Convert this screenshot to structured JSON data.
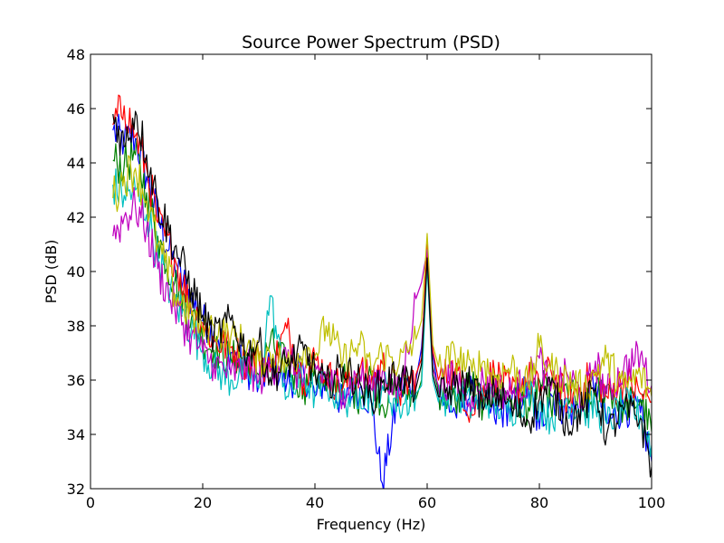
{
  "chart_data": {
    "type": "line",
    "title": "Source Power Spectrum (PSD)",
    "xlabel": "Frequency (Hz)",
    "ylabel": "PSD (dB)",
    "xlim": [
      0,
      100
    ],
    "ylim": [
      32,
      48
    ],
    "xticks": [
      0,
      20,
      40,
      60,
      80,
      100
    ],
    "yticks": [
      32,
      34,
      36,
      38,
      40,
      42,
      44,
      46,
      48
    ],
    "xtick_labels": [
      "0",
      "20",
      "40",
      "60",
      "80",
      "100"
    ],
    "ytick_labels": [
      "32",
      "34",
      "36",
      "38",
      "40",
      "42",
      "44",
      "46",
      "48"
    ],
    "grid": false,
    "legend": "none",
    "series_colors": [
      "#0000ff",
      "#008000",
      "#ff0000",
      "#00bfbf",
      "#bf00bf",
      "#bfbf00",
      "#000000"
    ],
    "series": [
      {
        "color": "#0000ff",
        "x": [
          4,
          6,
          8,
          10,
          12,
          15,
          18,
          20,
          22,
          25,
          28,
          30,
          32,
          35,
          38,
          40,
          42,
          45,
          48,
          50,
          52,
          55,
          58,
          59,
          60,
          61,
          62,
          65,
          68,
          70,
          72,
          75,
          78,
          80,
          82,
          85,
          88,
          90,
          92,
          95,
          98,
          100
        ],
        "y": [
          45.2,
          44.8,
          44.9,
          43.5,
          42.0,
          40.2,
          39.0,
          38.2,
          37.8,
          37.0,
          36.4,
          35.8,
          36.6,
          35.9,
          36.3,
          35.4,
          36.1,
          35.1,
          35.7,
          35.2,
          32.2,
          35.6,
          36.0,
          37.2,
          40.3,
          37.0,
          35.5,
          34.8,
          35.6,
          35.2,
          34.6,
          35.1,
          35.7,
          34.2,
          35.5,
          34.8,
          35.2,
          35.9,
          34.4,
          35.0,
          34.8,
          33.0
        ]
      },
      {
        "color": "#008000",
        "x": [
          4,
          6,
          8,
          10,
          12,
          15,
          18,
          20,
          22,
          25,
          28,
          30,
          32,
          35,
          38,
          40,
          42,
          45,
          48,
          50,
          52,
          55,
          58,
          59,
          60,
          61,
          62,
          65,
          68,
          70,
          72,
          75,
          78,
          80,
          82,
          85,
          88,
          90,
          92,
          95,
          98,
          100
        ],
        "y": [
          44.1,
          43.9,
          44.3,
          42.9,
          41.3,
          39.6,
          38.3,
          37.5,
          37.1,
          36.8,
          36.9,
          36.2,
          37.4,
          36.5,
          35.7,
          36.4,
          35.6,
          36.0,
          35.4,
          36.2,
          35.1,
          35.8,
          35.3,
          36.0,
          40.9,
          36.5,
          35.6,
          35.2,
          35.9,
          35.1,
          35.7,
          35.3,
          35.0,
          36.0,
          35.1,
          35.6,
          34.9,
          35.4,
          35.8,
          35.0,
          35.3,
          34.1
        ]
      },
      {
        "color": "#ff0000",
        "x": [
          4,
          6,
          8,
          10,
          12,
          15,
          18,
          20,
          22,
          25,
          28,
          30,
          32,
          35,
          38,
          40,
          42,
          45,
          48,
          50,
          52,
          55,
          58,
          59,
          60,
          61,
          62,
          65,
          68,
          70,
          72,
          75,
          78,
          80,
          82,
          85,
          88,
          90,
          92,
          95,
          98,
          100
        ],
        "y": [
          45.4,
          46.1,
          45.0,
          43.8,
          41.8,
          40.5,
          38.6,
          38.1,
          37.4,
          37.2,
          36.6,
          36.9,
          36.3,
          37.9,
          36.0,
          36.8,
          36.2,
          35.7,
          36.4,
          35.9,
          36.6,
          35.5,
          36.2,
          36.8,
          41.0,
          37.1,
          36.0,
          36.4,
          34.7,
          35.8,
          36.3,
          35.5,
          36.1,
          35.6,
          36.4,
          35.2,
          35.9,
          36.2,
          35.4,
          36.0,
          35.5,
          35.2
        ]
      },
      {
        "color": "#00bfbf",
        "x": [
          4,
          6,
          8,
          10,
          12,
          15,
          18,
          20,
          22,
          25,
          28,
          30,
          32,
          35,
          38,
          40,
          42,
          45,
          48,
          50,
          52,
          55,
          58,
          59,
          60,
          61,
          62,
          65,
          68,
          70,
          72,
          75,
          78,
          80,
          82,
          85,
          88,
          90,
          92,
          95,
          98,
          100
        ],
        "y": [
          43.2,
          42.8,
          43.0,
          42.1,
          40.6,
          38.9,
          37.9,
          37.1,
          36.4,
          36.0,
          36.3,
          35.7,
          39.1,
          35.4,
          36.1,
          35.5,
          35.9,
          35.2,
          35.6,
          35.3,
          35.8,
          35.0,
          35.5,
          35.8,
          40.2,
          36.0,
          35.2,
          35.6,
          35.0,
          35.4,
          35.1,
          34.9,
          35.5,
          35.1,
          34.6,
          35.3,
          34.8,
          35.0,
          34.4,
          35.1,
          34.7,
          33.6
        ]
      },
      {
        "color": "#bf00bf",
        "x": [
          4,
          6,
          8,
          10,
          12,
          15,
          18,
          20,
          22,
          25,
          28,
          30,
          32,
          35,
          38,
          40,
          42,
          45,
          48,
          50,
          52,
          55,
          58,
          59,
          60,
          61,
          62,
          65,
          68,
          70,
          72,
          75,
          78,
          80,
          82,
          85,
          88,
          90,
          92,
          95,
          98,
          100
        ],
        "y": [
          41.3,
          42.0,
          42.4,
          41.6,
          40.1,
          38.7,
          37.6,
          37.0,
          36.6,
          36.2,
          36.5,
          36.0,
          36.4,
          36.8,
          35.9,
          36.6,
          36.0,
          35.6,
          36.2,
          35.7,
          36.3,
          35.4,
          39.0,
          39.6,
          40.8,
          36.4,
          35.8,
          36.1,
          35.4,
          36.0,
          35.7,
          35.5,
          36.0,
          36.8,
          35.6,
          36.2,
          35.3,
          36.7,
          35.5,
          36.4,
          36.9,
          35.8
        ]
      },
      {
        "color": "#bfbf00",
        "x": [
          4,
          6,
          8,
          10,
          12,
          15,
          18,
          20,
          22,
          25,
          28,
          30,
          32,
          35,
          38,
          40,
          42,
          45,
          48,
          50,
          52,
          55,
          58,
          59,
          60,
          61,
          62,
          65,
          68,
          70,
          72,
          75,
          78,
          80,
          82,
          85,
          88,
          90,
          92,
          95,
          98,
          100
        ],
        "y": [
          42.7,
          43.5,
          43.8,
          42.6,
          41.0,
          39.2,
          38.4,
          37.9,
          38.0,
          37.6,
          37.3,
          36.7,
          37.0,
          36.5,
          37.2,
          36.9,
          38.0,
          36.7,
          37.3,
          36.4,
          37.0,
          36.6,
          37.5,
          38.2,
          41.4,
          37.3,
          36.5,
          36.9,
          36.3,
          36.7,
          36.1,
          36.5,
          35.8,
          37.2,
          36.4,
          36.0,
          35.6,
          36.3,
          36.8,
          35.7,
          36.2,
          35.4
        ]
      },
      {
        "color": "#000000",
        "x": [
          4,
          6,
          8,
          10,
          12,
          15,
          18,
          20,
          22,
          25,
          28,
          30,
          32,
          35,
          38,
          40,
          42,
          45,
          48,
          50,
          52,
          55,
          58,
          59,
          60,
          61,
          62,
          65,
          68,
          70,
          72,
          75,
          78,
          80,
          82,
          85,
          88,
          90,
          92,
          95,
          98,
          100
        ],
        "y": [
          45.8,
          44.6,
          45.9,
          44.3,
          42.6,
          40.9,
          39.4,
          38.4,
          37.6,
          38.2,
          37.0,
          37.4,
          36.1,
          36.6,
          37.1,
          36.3,
          35.8,
          36.5,
          35.9,
          35.3,
          35.9,
          36.2,
          35.7,
          36.6,
          40.5,
          36.2,
          35.4,
          35.7,
          36.0,
          34.9,
          35.6,
          35.0,
          34.5,
          35.3,
          35.8,
          34.4,
          35.0,
          35.7,
          34.0,
          34.9,
          34.6,
          32.8
        ]
      }
    ]
  }
}
